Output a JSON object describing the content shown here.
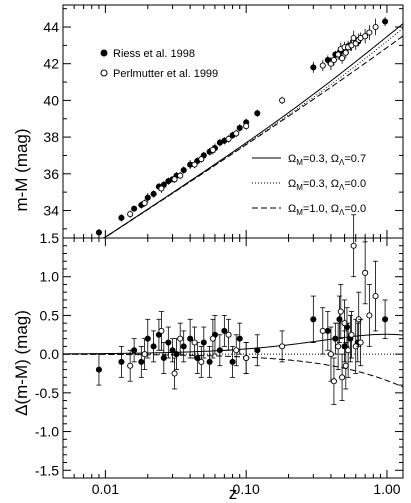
{
  "chart_data": [
    {
      "type": "scatter",
      "panel": "top",
      "xscale": "log",
      "xlim": [
        0.005,
        1.3
      ],
      "ylim": [
        32.5,
        45.2
      ],
      "xlabel": "",
      "ylabel": "m-M (mag)",
      "yticks": [
        34,
        36,
        38,
        40,
        42,
        44
      ],
      "ytick_labels": [
        "34",
        "36",
        "38",
        "40",
        "42",
        "44"
      ],
      "grid": false,
      "legend": {
        "position": "top-left",
        "entries": [
          {
            "label": "Riess et al. 1998",
            "marker": "filled-circle"
          },
          {
            "label": "Perlmutter et al. 1999",
            "marker": "open-circle"
          }
        ]
      },
      "model_legend": {
        "position": "right",
        "entries": [
          {
            "style": "solid",
            "om": "0.3",
            "ol": "0.7"
          },
          {
            "style": "dotted",
            "om": "0.3",
            "ol": "0.0"
          },
          {
            "style": "dashed",
            "om": "1.0",
            "ol": "0.0"
          }
        ]
      },
      "series": [
        {
          "name": "Riess et al. 1998",
          "marker": "filled-circle",
          "x": [
            0.009,
            0.013,
            0.016,
            0.018,
            0.02,
            0.022,
            0.024,
            0.026,
            0.028,
            0.03,
            0.032,
            0.036,
            0.04,
            0.045,
            0.05,
            0.055,
            0.06,
            0.065,
            0.07,
            0.08,
            0.09,
            0.1,
            0.12,
            0.3,
            0.38,
            0.43,
            0.46,
            0.5,
            0.52,
            0.55,
            0.62,
            0.97
          ],
          "y": [
            32.8,
            33.6,
            34.1,
            34.3,
            34.7,
            34.9,
            35.3,
            35.4,
            35.6,
            35.7,
            35.9,
            36.2,
            36.5,
            36.7,
            37.0,
            37.2,
            37.4,
            37.7,
            37.8,
            38.1,
            38.5,
            38.8,
            39.3,
            41.8,
            42.2,
            42.5,
            42.6,
            42.7,
            42.9,
            43.0,
            43.2,
            44.3
          ],
          "dm": [
            -0.2,
            -0.1,
            0.05,
            -0.1,
            0.2,
            0.1,
            0.25,
            -0.05,
            0.15,
            0.05,
            0.0,
            0.1,
            0.2,
            -0.05,
            0.15,
            -0.1,
            0.25,
            0.05,
            0.3,
            -0.1,
            0.2,
            -0.05,
            0.05,
            0.45,
            0.3,
            0.2,
            0.45,
            0.1,
            0.35,
            0.2,
            0.15,
            0.45
          ],
          "err": [
            0.2,
            0.2,
            0.15,
            0.2,
            0.25,
            0.2,
            0.2,
            0.2,
            0.2,
            0.15,
            0.2,
            0.2,
            0.25,
            0.2,
            0.2,
            0.2,
            0.25,
            0.2,
            0.2,
            0.2,
            0.2,
            0.2,
            0.2,
            0.3,
            0.25,
            0.2,
            0.3,
            0.2,
            0.25,
            0.3,
            0.25,
            0.25
          ]
        },
        {
          "name": "Perlmutter et al. 1999",
          "marker": "open-circle",
          "x": [
            0.015,
            0.019,
            0.025,
            0.031,
            0.034,
            0.043,
            0.048,
            0.058,
            0.075,
            0.085,
            0.1,
            0.18,
            0.35,
            0.4,
            0.42,
            0.45,
            0.47,
            0.48,
            0.5,
            0.51,
            0.53,
            0.56,
            0.58,
            0.6,
            0.63,
            0.65,
            0.7,
            0.75,
            0.83
          ],
          "y": [
            33.8,
            34.4,
            35.2,
            35.7,
            35.9,
            36.5,
            36.8,
            37.3,
            37.9,
            38.2,
            38.6,
            40.0,
            41.9,
            42.0,
            42.2,
            42.5,
            42.8,
            42.3,
            42.9,
            42.6,
            42.9,
            43.0,
            43.4,
            43.1,
            43.3,
            43.4,
            43.5,
            43.7,
            44.0
          ],
          "dm": [
            -0.15,
            0.0,
            0.3,
            -0.25,
            0.2,
            0.15,
            -0.1,
            0.2,
            0.25,
            0.05,
            -0.05,
            0.1,
            0.3,
            0.0,
            -0.35,
            0.1,
            0.55,
            -0.3,
            0.4,
            -0.15,
            0.05,
            0.25,
            1.4,
            0.1,
            0.45,
            0.15,
            1.05,
            0.5,
            0.75
          ],
          "err": [
            0.2,
            0.2,
            0.25,
            0.2,
            0.2,
            0.2,
            0.2,
            0.25,
            0.2,
            0.2,
            0.2,
            0.2,
            0.3,
            0.35,
            0.3,
            0.3,
            0.35,
            0.3,
            0.3,
            0.3,
            0.35,
            0.3,
            0.4,
            0.35,
            0.35,
            0.3,
            0.4,
            0.4,
            0.45
          ]
        }
      ],
      "models": [
        {
          "style": "solid",
          "om": 0.3,
          "ol": 0.7
        },
        {
          "style": "dotted",
          "om": 0.3,
          "ol": 0.0
        },
        {
          "style": "dashed",
          "om": 1.0,
          "ol": 0.0
        }
      ]
    },
    {
      "type": "scatter",
      "panel": "bottom",
      "xscale": "log",
      "xlim": [
        0.005,
        1.3
      ],
      "ylim": [
        -1.6,
        1.5
      ],
      "xlabel": "z",
      "ylabel": "Δ(m-M) (mag)",
      "xticks": [
        0.01,
        0.1,
        1.0
      ],
      "xtick_labels": [
        "0.01",
        "0.10",
        "1.00"
      ],
      "yticks": [
        -1.5,
        -1.0,
        -0.5,
        0.0,
        0.5,
        1.0,
        1.5
      ],
      "ytick_labels": [
        "-1.5",
        "-1.0",
        "-0.5",
        "0.0",
        "0.5",
        "1.0",
        "1.5"
      ],
      "grid": false,
      "reference": "dotted model (Ω_M=0.3, Ω_Λ=0.0)"
    }
  ]
}
